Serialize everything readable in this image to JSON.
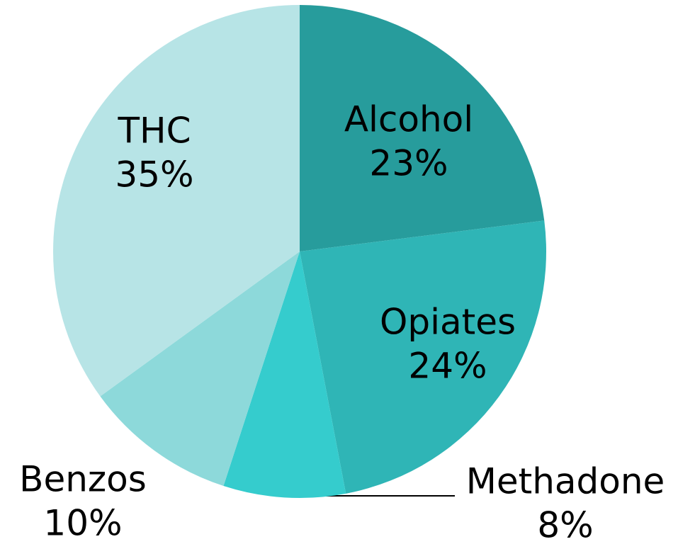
{
  "chart_data": {
    "type": "pie",
    "categories": [
      "Alcohol",
      "Opiates",
      "Methadone",
      "Benzos",
      "THC"
    ],
    "values": [
      23,
      24,
      8,
      10,
      35
    ],
    "value_labels": [
      "23%",
      "24%",
      "8%",
      "10%",
      "35%"
    ],
    "colors": [
      "#279c9c",
      "#2fb5b6",
      "#35cccd",
      "#8dd9da",
      "#b7e4e6"
    ]
  }
}
